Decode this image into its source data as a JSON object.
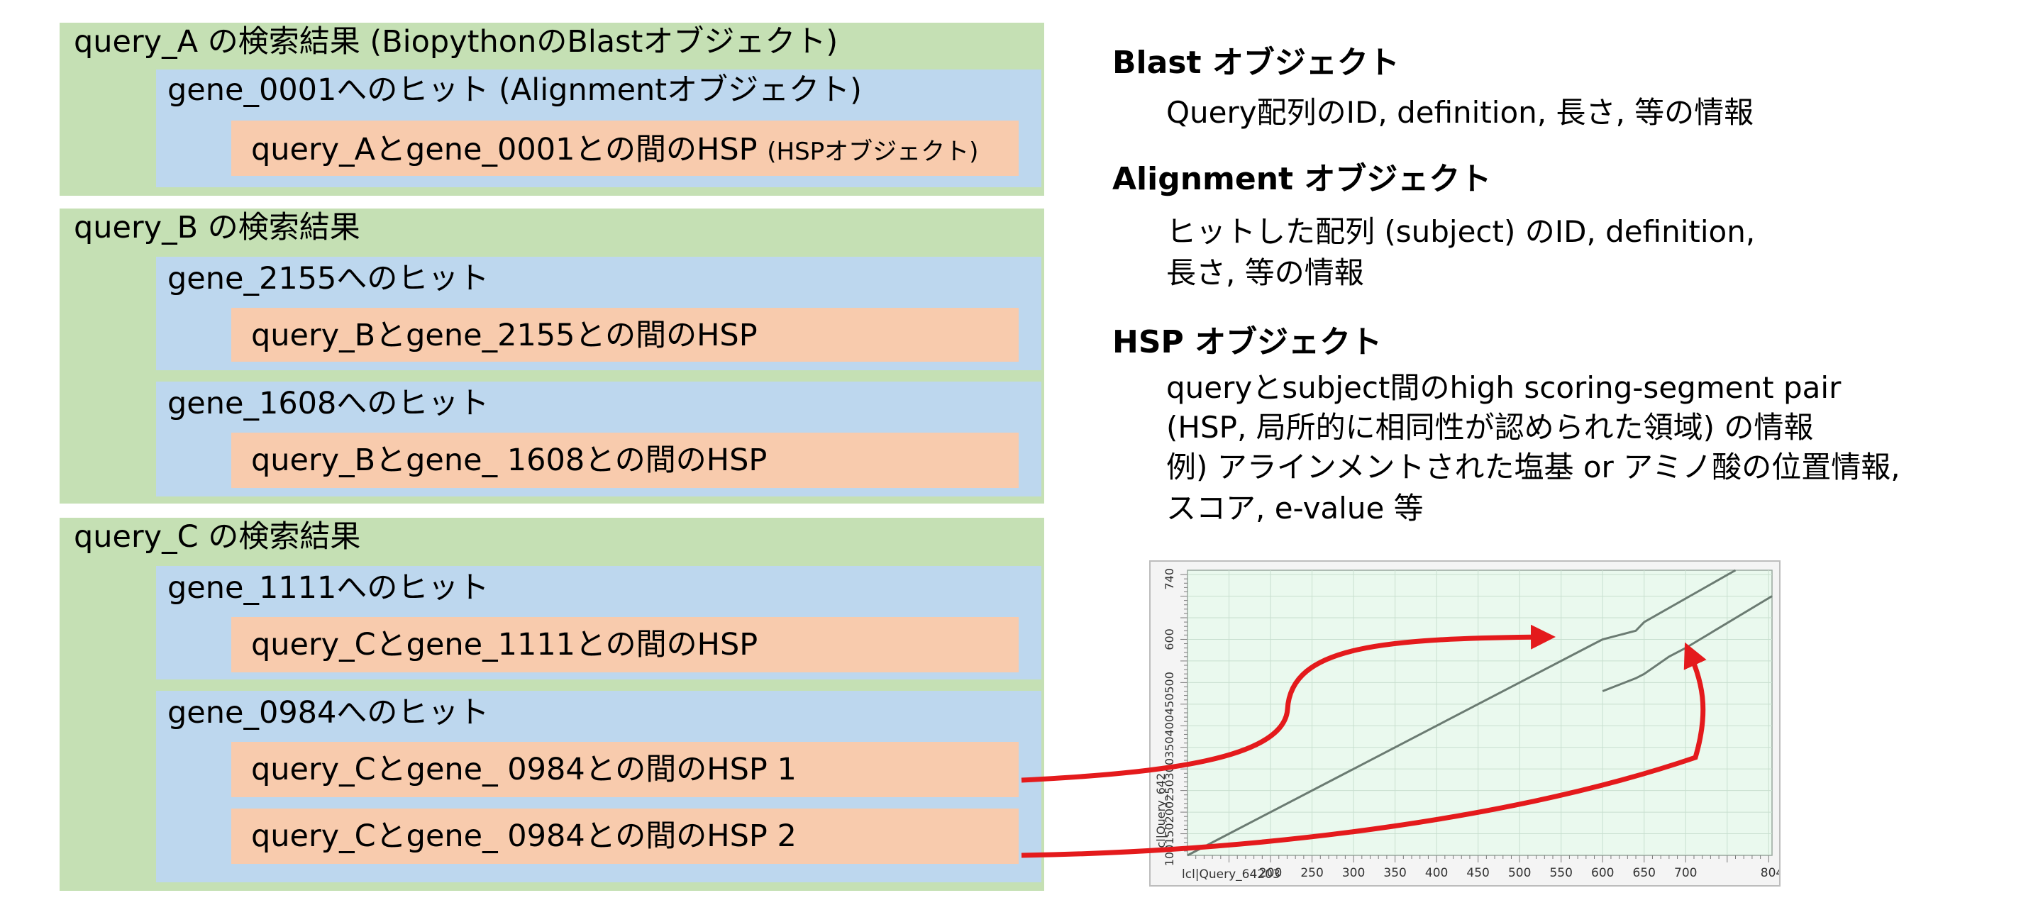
{
  "hierarchy": {
    "query_a": {
      "label": "query_A の検索結果 (BiopythonのBlastオブジェクト)",
      "hit": "gene_0001へのヒット (Alignmentオブジェクト)",
      "hsp_main": "query_Aとgene_0001との間のHSP",
      "hsp_note": "(HSPオブジェクト)"
    },
    "query_b": {
      "label": "query_B の検索結果",
      "hit1": "gene_2155へのヒット",
      "hsp1": "query_Bとgene_2155との間のHSP",
      "hit2": "gene_1608へのヒット",
      "hsp2": "query_Bとgene_ 1608との間のHSP"
    },
    "query_c": {
      "label": "query_C の検索結果",
      "hit1": "gene_1111へのヒット",
      "hsp1": "query_Cとgene_1111との間のHSP",
      "hit2": "gene_0984へのヒット",
      "hsp2a": "query_Cとgene_ 0984との間のHSP 1",
      "hsp2b": "query_Cとgene_ 0984との間のHSP 2"
    }
  },
  "descriptions": {
    "blast_title": "Blast オブジェクト",
    "blast_text": "Query配列のID, definition, 長さ, 等の情報",
    "alignment_title": "Alignment オブジェクト",
    "alignment_line1": "ヒットした配列 (subject) のID, definition,",
    "alignment_line2": "長さ, 等の情報",
    "hsp_title": "HSP オブジェクト",
    "hsp_line1": "queryとsubject間のhigh scoring-segment pair",
    "hsp_line2": "(HSP, 局所的に相同性が認められた領域) の情報",
    "hsp_line3": "例) アラインメントされた塩基 or アミノ酸の位置情報,",
    "hsp_line4": " スコア, e-value 等"
  },
  "chart_data": {
    "type": "line",
    "xlabel": "lcl|Query_64203",
    "ylabel": "lcl|Query_642",
    "x_ticks": [
      "200",
      "250",
      "300",
      "350",
      "400",
      "450",
      "500",
      "550",
      "600",
      "650",
      "700",
      "804"
    ],
    "y_ticks": [
      "100",
      "150",
      "200",
      "250",
      "300",
      "350",
      "400",
      "450",
      "500",
      "600",
      "740"
    ],
    "xlim": [
      100,
      804
    ],
    "ylim": [
      100,
      760
    ],
    "grid": true,
    "series": [
      {
        "points": [
          [
            100,
            100
          ],
          [
            590,
            590
          ],
          [
            600,
            600
          ],
          [
            640,
            620
          ],
          [
            650,
            640
          ],
          [
            760,
            760
          ]
        ]
      },
      {
        "points": [
          [
            600,
            480
          ],
          [
            640,
            510
          ],
          [
            650,
            520
          ],
          [
            680,
            560
          ],
          [
            700,
            580
          ],
          [
            804,
            700
          ]
        ]
      }
    ]
  },
  "colors": {
    "green": "#c5e0b4",
    "blue": "#bdd7ee",
    "orange": "#f8cbad",
    "arrow": "#e41a1c",
    "plot_bg": "#eaf9ee",
    "plot_line": "#6b7b72"
  }
}
